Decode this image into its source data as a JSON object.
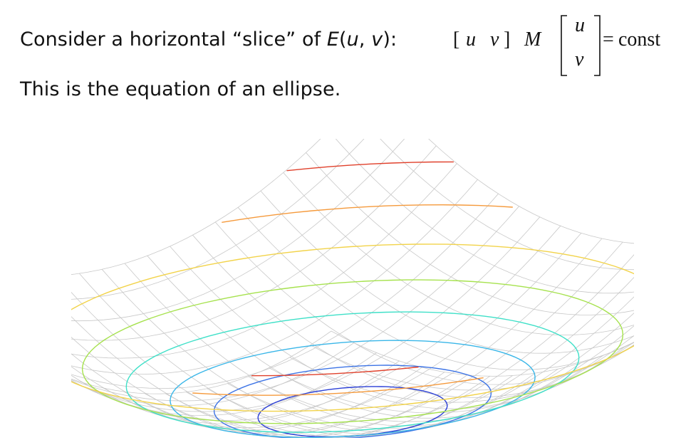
{
  "slide": {
    "line1": {
      "prefix": "Consider a horizontal “slice” of ",
      "func": "E",
      "open": "(",
      "u": "u",
      "comma": ", ",
      "v": "v",
      "close": "):"
    },
    "line2": "This is the equation of an ellipse.",
    "equation": {
      "row_bracket_open": "[",
      "row_u": "u",
      "row_v": "v",
      "row_bracket_close": "]",
      "matrix": "M",
      "col_u": "u",
      "col_v": "v",
      "equals": "=",
      "rhs": "const"
    }
  },
  "figure": {
    "wire_color": "#c8c8c8",
    "contour_colors": [
      "#2b3fd6",
      "#3d74e6",
      "#39b6e8",
      "#3fe0c8",
      "#a6e24e",
      "#f2d34a",
      "#f59a3c",
      "#e0402b"
    ]
  }
}
